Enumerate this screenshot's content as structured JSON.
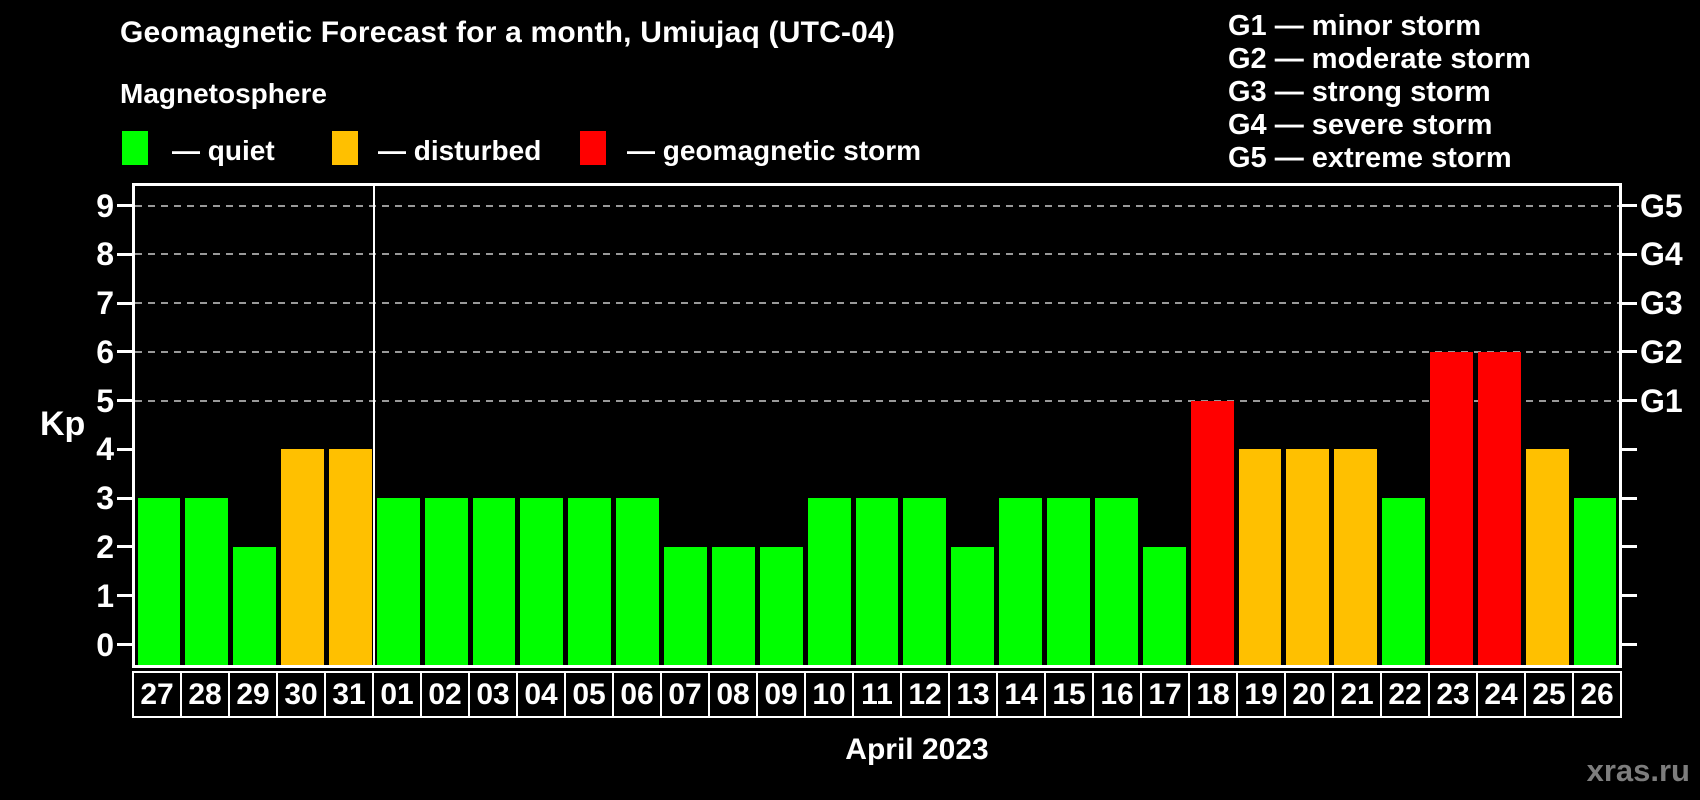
{
  "title": "Geomagnetic Forecast for a month, Umiujaq (UTC-04)",
  "subtitle": "Magnetosphere",
  "legend": {
    "items": [
      {
        "key": "quiet",
        "label": "— quiet",
        "color": "#00ff00"
      },
      {
        "key": "disturbed",
        "label": "— disturbed",
        "color": "#ffc000"
      },
      {
        "key": "storm",
        "label": "— geomagnetic storm",
        "color": "#ff0000"
      }
    ]
  },
  "g_scale_legend": {
    "lines": [
      "G1 — minor storm",
      "G2 — moderate storm",
      "G3 — strong storm",
      "G4 — severe storm",
      "G5 — extreme storm"
    ]
  },
  "axis": {
    "kp_label": "Kp"
  },
  "footer": {
    "month_label": "April 2023",
    "watermark": "xras.ru"
  },
  "colors": {
    "background": "#000000",
    "axis": "#ffffff",
    "grid": "#999999",
    "quiet": "#00ff00",
    "disturbed": "#ffc000",
    "storm": "#ff0000",
    "watermark": "#7d7d7d"
  },
  "chart_data": {
    "type": "bar",
    "title": "Geomagnetic Forecast for a month, Umiujaq (UTC-04)",
    "ylabel": "Kp",
    "xlabel": "April 2023",
    "ylim": [
      0,
      9
    ],
    "grid": "horizontal dashed lines at Kp 5–9 only",
    "legend_position": "top-left",
    "yticks": [
      "0",
      "1",
      "2",
      "3",
      "4",
      "5",
      "6",
      "7",
      "8",
      "9"
    ],
    "gridlines_at_kp": [
      5,
      6,
      7,
      8,
      9
    ],
    "right_axis": [
      {
        "kp": 5,
        "label": "G1"
      },
      {
        "kp": 6,
        "label": "G2"
      },
      {
        "kp": 7,
        "label": "G3"
      },
      {
        "kp": 8,
        "label": "G4"
      },
      {
        "kp": 9,
        "label": "G5"
      }
    ],
    "categories": [
      "27",
      "28",
      "29",
      "30",
      "31",
      "01",
      "02",
      "03",
      "04",
      "05",
      "06",
      "07",
      "08",
      "09",
      "10",
      "11",
      "12",
      "13",
      "14",
      "15",
      "16",
      "17",
      "18",
      "19",
      "20",
      "21",
      "22",
      "23",
      "24",
      "25",
      "26"
    ],
    "values": [
      3,
      3,
      2,
      4,
      4,
      3,
      3,
      3,
      3,
      3,
      3,
      2,
      2,
      2,
      3,
      3,
      3,
      2,
      3,
      3,
      3,
      2,
      5,
      4,
      4,
      4,
      3,
      6,
      6,
      4,
      3
    ],
    "statuses": [
      "quiet",
      "quiet",
      "quiet",
      "disturbed",
      "disturbed",
      "quiet",
      "quiet",
      "quiet",
      "quiet",
      "quiet",
      "quiet",
      "quiet",
      "quiet",
      "quiet",
      "quiet",
      "quiet",
      "quiet",
      "quiet",
      "quiet",
      "quiet",
      "quiet",
      "quiet",
      "storm",
      "disturbed",
      "disturbed",
      "disturbed",
      "quiet",
      "storm",
      "storm",
      "disturbed",
      "quiet"
    ],
    "month_separator_after_index": 4
  }
}
